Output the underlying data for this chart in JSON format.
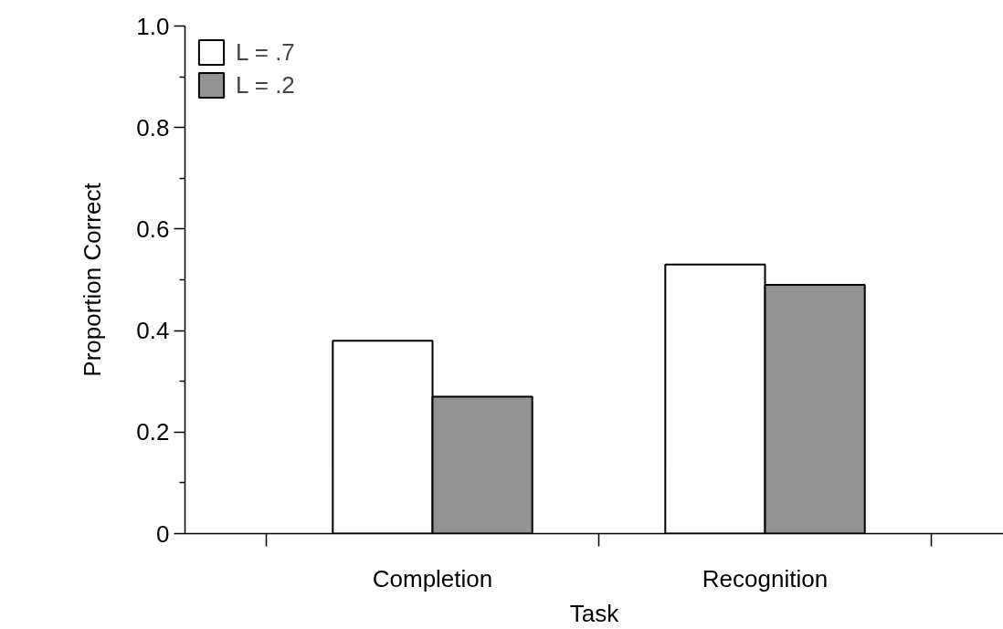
{
  "chart_data": {
    "type": "bar",
    "xlabel": "Task",
    "ylabel": "Proportion Correct",
    "categories": [
      "Completion",
      "Recognition"
    ],
    "series": [
      {
        "name": "L = .7",
        "color": "#ffffff",
        "values": [
          0.38,
          0.53
        ]
      },
      {
        "name": "L = .2",
        "color": "#939393",
        "values": [
          0.27,
          0.49
        ]
      }
    ],
    "ylim": [
      0,
      1
    ],
    "yticks": [
      0,
      {
        "value": 0.1,
        "label": null
      },
      0.2,
      {
        "value": 0.3,
        "label": null
      },
      0.4,
      {
        "value": 0.5,
        "label": null
      },
      0.6,
      {
        "value": 0.7,
        "label": null
      },
      0.8,
      {
        "value": 0.9,
        "label": null
      },
      {
        "value": 1,
        "label": "1.0"
      }
    ],
    "grid": false,
    "legend": "top left"
  }
}
